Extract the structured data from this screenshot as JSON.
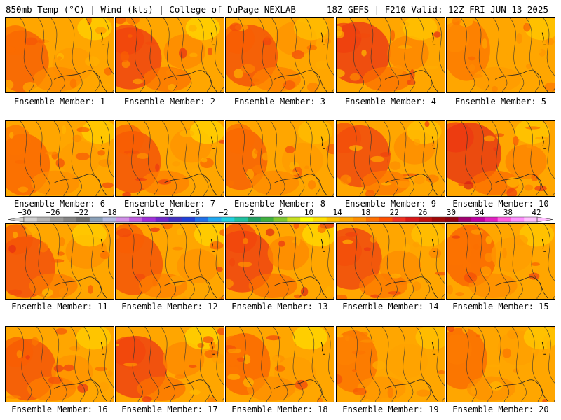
{
  "header": {
    "left": "850mb Temp (°C) | Wind (kts) | College of DuPage NEXLAB",
    "right": "18Z GEFS | F210 Valid: 12Z FRI JUN 13 2025"
  },
  "panels": [
    {
      "label": "Ensemble Member: 1",
      "heat": 0.45
    },
    {
      "label": "Ensemble Member: 2",
      "heat": 0.7
    },
    {
      "label": "Ensemble Member: 3",
      "heat": 0.55
    },
    {
      "label": "Ensemble Member: 4",
      "heat": 0.75
    },
    {
      "label": "Ensemble Member: 5",
      "heat": 0.25
    },
    {
      "label": "Ensemble Member: 6",
      "heat": 0.4
    },
    {
      "label": "Ensemble Member: 7",
      "heat": 0.55
    },
    {
      "label": "Ensemble Member: 8",
      "heat": 0.45
    },
    {
      "label": "Ensemble Member: 9",
      "heat": 0.65
    },
    {
      "label": "Ensemble Member: 10",
      "heat": 0.8
    },
    {
      "label": "Ensemble Member: 11",
      "heat": 0.6
    },
    {
      "label": "Ensemble Member: 12",
      "heat": 0.55
    },
    {
      "label": "Ensemble Member: 13",
      "heat": 0.7
    },
    {
      "label": "Ensemble Member: 14",
      "heat": 0.65
    },
    {
      "label": "Ensemble Member: 15",
      "heat": 0.4
    },
    {
      "label": "Ensemble Member: 16",
      "heat": 0.55
    },
    {
      "label": "Ensemble Member: 17",
      "heat": 0.7
    },
    {
      "label": "Ensemble Member: 18",
      "heat": 0.4
    },
    {
      "label": "Ensemble Member: 19",
      "heat": 0.3
    },
    {
      "label": "Ensemble Member: 20",
      "heat": 0.35
    }
  ],
  "colorbar": {
    "ticks": [
      "−30",
      "−26",
      "−22",
      "−18",
      "−14",
      "−10",
      "−6",
      "−2",
      "2",
      "6",
      "10",
      "14",
      "18",
      "22",
      "26",
      "30",
      "34",
      "38",
      "42"
    ],
    "colors": [
      "#cfcfcf",
      "#b4b4b4",
      "#9a9a9a",
      "#858585",
      "#6e6e6e",
      "#8aa0b8",
      "#b0b8e0",
      "#d090e8",
      "#c060e0",
      "#a030d8",
      "#7028c8",
      "#4030c0",
      "#2040d8",
      "#2070e8",
      "#20a8f0",
      "#20d0e0",
      "#20c0a0",
      "#20a060",
      "#40b040",
      "#80c830",
      "#c8e020",
      "#ffff00",
      "#ffe000",
      "#ffc000",
      "#ffa800",
      "#ff9000",
      "#ff7000",
      "#ff5000",
      "#f03020",
      "#d81818",
      "#c01010",
      "#a00808",
      "#900010",
      "#a00070",
      "#c000a0",
      "#e020c0",
      "#ff60e0",
      "#ff90ff",
      "#ffc0ff"
    ]
  }
}
